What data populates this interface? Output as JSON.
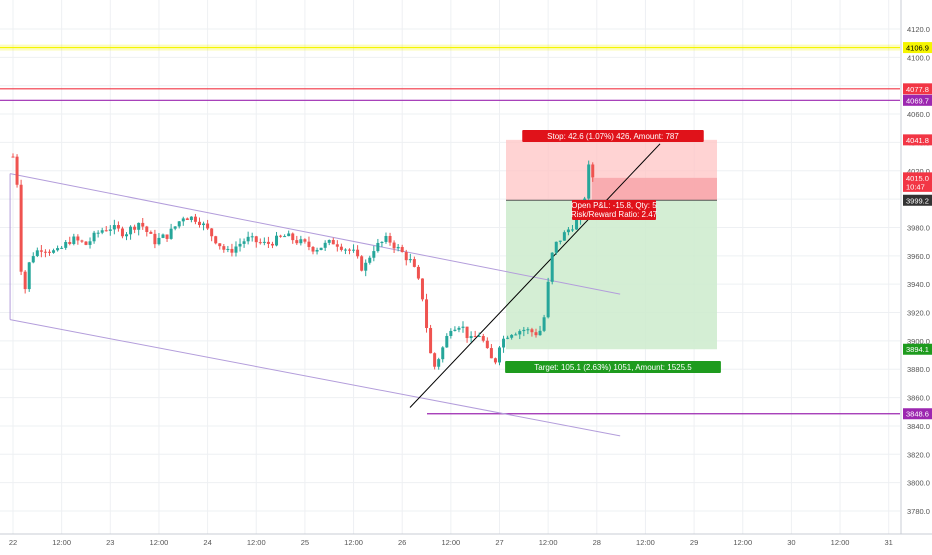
{
  "chart_data": {
    "type": "candlestick",
    "price_axis": {
      "ticks": [
        "4120.0",
        "4100.0",
        "4080.0",
        "4060.0",
        "4040.0",
        "4020.0",
        "4000.0",
        "3980.0",
        "3960.0",
        "3940.0",
        "3920.0",
        "3900.0",
        "3880.0",
        "3860.0",
        "3840.0",
        "3820.0",
        "3800.0",
        "3780.0"
      ],
      "ylim": [
        3772,
        4132
      ]
    },
    "time_axis": {
      "ticks": [
        "22",
        "12:00",
        "23",
        "12:00",
        "24",
        "12:00",
        "25",
        "12:00",
        "26",
        "12:00",
        "27",
        "12:00",
        "28",
        "12:00",
        "29",
        "12:00",
        "30",
        "12:00",
        "31"
      ]
    },
    "horizontal_levels": [
      {
        "label": "4106.9",
        "price": 4106.9,
        "color": "#f5f500",
        "text_color": "#000000"
      },
      {
        "label": "4077.8",
        "price": 4077.8,
        "color": "#f23645",
        "text_color": "#ffffff"
      },
      {
        "label": "4069.7",
        "price": 4069.7,
        "color": "#9c27b0",
        "text_color": "#ffffff"
      },
      {
        "label": "3848.6",
        "price": 3848.6,
        "color": "#9c27b0",
        "text_color": "#ffffff"
      }
    ],
    "price_badges": [
      {
        "label": "4041.8",
        "price": 4041.8,
        "color": "#f23645",
        "text_color": "#ffffff"
      },
      {
        "label": "4015.0",
        "price": 4015.0,
        "color": "#f23645",
        "text_color": "#ffffff"
      },
      {
        "label": "10:47",
        "price": 4009.0,
        "color": "#f23645",
        "text_color": "#ffffff"
      },
      {
        "label": "3999.2",
        "price": 3999.2,
        "color": "#333333",
        "text_color": "#ffffff"
      },
      {
        "label": "3894.1",
        "price": 3894.1,
        "color": "#1e9b1e",
        "text_color": "#ffffff"
      }
    ],
    "position": {
      "entry": 3999.2,
      "stop": 4041.8,
      "target": 3894.1,
      "current": 4015.0,
      "stop_label": "Stop: 42.6 (1.07%) 426, Amount: 787",
      "target_label": "Target: 105.1 (2.63%) 1051, Amount: 1525.5",
      "pnl_label": "Open P&L: -15.8, Qty: 5",
      "rr_label": "Risk/Reward Ratio: 2.47",
      "stop_color": "#e0121a",
      "target_color": "#1e9b1e",
      "stop_zone_color": "#ffc4c4",
      "target_zone_color": "#ccebcc"
    },
    "ohlc_path": [
      [
        22.0,
        4030
      ],
      [
        22.05,
        4008
      ],
      [
        22.09,
        3940
      ],
      [
        22.12,
        3935
      ],
      [
        22.18,
        3960
      ],
      [
        22.3,
        3966
      ],
      [
        22.45,
        3962
      ],
      [
        22.6,
        3972
      ],
      [
        22.75,
        3968
      ],
      [
        22.9,
        3978
      ],
      [
        23.0,
        3980
      ],
      [
        23.15,
        3976
      ],
      [
        23.3,
        3984
      ],
      [
        23.45,
        3970
      ],
      [
        23.6,
        3975
      ],
      [
        23.75,
        3988
      ],
      [
        23.9,
        3986
      ],
      [
        24.0,
        3978
      ],
      [
        24.1,
        3970
      ],
      [
        24.2,
        3962
      ],
      [
        24.4,
        3972
      ],
      [
        24.6,
        3968
      ],
      [
        24.8,
        3974
      ],
      [
        25.0,
        3968
      ],
      [
        25.1,
        3965
      ],
      [
        25.3,
        3970
      ],
      [
        25.5,
        3962
      ],
      [
        25.6,
        3950
      ],
      [
        25.7,
        3965
      ],
      [
        25.85,
        3972
      ],
      [
        26.0,
        3962
      ],
      [
        26.1,
        3955
      ],
      [
        26.2,
        3935
      ],
      [
        26.28,
        3895
      ],
      [
        26.32,
        3880
      ],
      [
        26.4,
        3892
      ],
      [
        26.5,
        3910
      ],
      [
        26.6,
        3912
      ],
      [
        26.7,
        3900
      ],
      [
        26.8,
        3905
      ],
      [
        26.9,
        3888
      ],
      [
        26.95,
        3884
      ],
      [
        27.0,
        3898
      ],
      [
        27.1,
        3906
      ],
      [
        27.25,
        3908
      ],
      [
        27.4,
        3905
      ],
      [
        27.45,
        3912
      ],
      [
        27.5,
        3940
      ],
      [
        27.55,
        3965
      ],
      [
        27.6,
        3970
      ],
      [
        27.7,
        3978
      ],
      [
        27.8,
        3985
      ],
      [
        27.85,
        3992
      ],
      [
        27.9,
        4012
      ],
      [
        27.93,
        4030
      ],
      [
        27.96,
        4015
      ]
    ],
    "channel": {
      "upper": [
        [
          21.97,
          4018
        ],
        [
          28.24,
          3933
        ]
      ],
      "lower": [
        [
          21.97,
          3915
        ],
        [
          28.24,
          3833
        ]
      ]
    },
    "trendline": [
      [
        26.08,
        3853
      ],
      [
        28.65,
        4039
      ]
    ]
  }
}
